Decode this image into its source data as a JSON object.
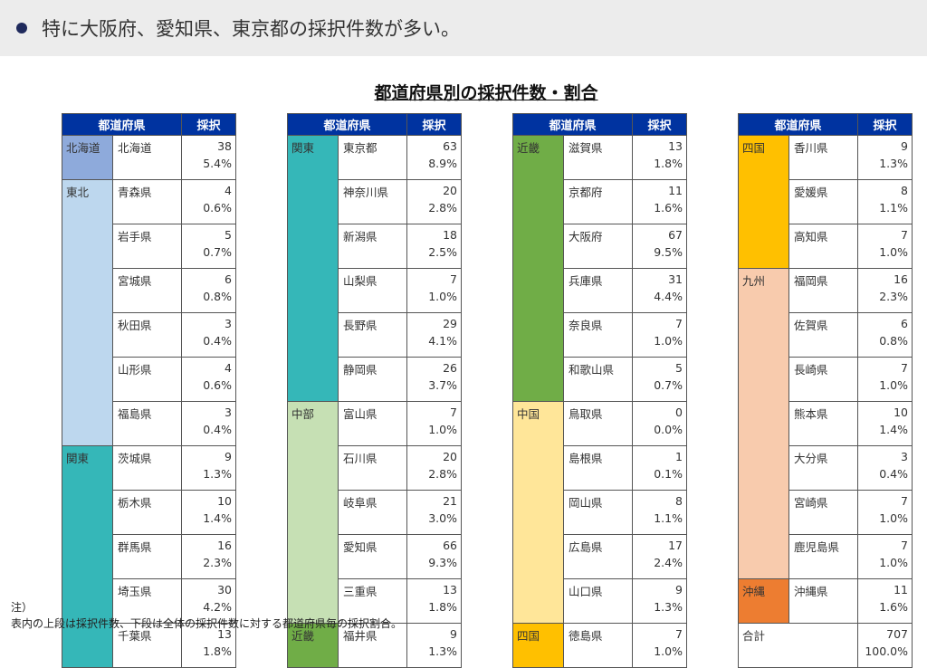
{
  "banner": {
    "text": "特に大阪府、愛知県、東京都の採択件数が多い。"
  },
  "title": "都道府県別の採択件数・割合",
  "headers": {
    "pref": "都道府県",
    "count": "採択"
  },
  "tables": [
    [
      {
        "region": "北海道",
        "color": "#8eaadb",
        "prefs": [
          [
            "北海道",
            "38",
            "5.4%"
          ]
        ]
      },
      {
        "region": "東北",
        "color": "#bdd7ee",
        "prefs": [
          [
            "青森県",
            "4",
            "0.6%"
          ],
          [
            "岩手県",
            "5",
            "0.7%"
          ],
          [
            "宮城県",
            "6",
            "0.8%"
          ],
          [
            "秋田県",
            "3",
            "0.4%"
          ],
          [
            "山形県",
            "4",
            "0.6%"
          ],
          [
            "福島県",
            "3",
            "0.4%"
          ]
        ]
      },
      {
        "region": "関東",
        "color": "#35b7b8",
        "prefs": [
          [
            "茨城県",
            "9",
            "1.3%"
          ],
          [
            "栃木県",
            "10",
            "1.4%"
          ],
          [
            "群馬県",
            "16",
            "2.3%"
          ],
          [
            "埼玉県",
            "30",
            "4.2%"
          ],
          [
            "千葉県",
            "13",
            "1.8%"
          ]
        ]
      }
    ],
    [
      {
        "region": "関東",
        "color": "#35b7b8",
        "prefs": [
          [
            "東京都",
            "63",
            "8.9%"
          ],
          [
            "神奈川県",
            "20",
            "2.8%"
          ],
          [
            "新潟県",
            "18",
            "2.5%"
          ],
          [
            "山梨県",
            "7",
            "1.0%"
          ],
          [
            "長野県",
            "29",
            "4.1%"
          ],
          [
            "静岡県",
            "26",
            "3.7%"
          ]
        ]
      },
      {
        "region": "中部",
        "color": "#c6e0b4",
        "prefs": [
          [
            "富山県",
            "7",
            "1.0%"
          ],
          [
            "石川県",
            "20",
            "2.8%"
          ],
          [
            "岐阜県",
            "21",
            "3.0%"
          ],
          [
            "愛知県",
            "66",
            "9.3%"
          ],
          [
            "三重県",
            "13",
            "1.8%"
          ]
        ]
      },
      {
        "region": "近畿",
        "color": "#70ad47",
        "prefs": [
          [
            "福井県",
            "9",
            "1.3%"
          ]
        ]
      }
    ],
    [
      {
        "region": "近畿",
        "color": "#70ad47",
        "prefs": [
          [
            "滋賀県",
            "13",
            "1.8%"
          ],
          [
            "京都府",
            "11",
            "1.6%"
          ],
          [
            "大阪府",
            "67",
            "9.5%"
          ],
          [
            "兵庫県",
            "31",
            "4.4%"
          ],
          [
            "奈良県",
            "7",
            "1.0%"
          ],
          [
            "和歌山県",
            "5",
            "0.7%"
          ]
        ]
      },
      {
        "region": "中国",
        "color": "#ffe699",
        "prefs": [
          [
            "鳥取県",
            "0",
            "0.0%"
          ],
          [
            "島根県",
            "1",
            "0.1%"
          ],
          [
            "岡山県",
            "8",
            "1.1%"
          ],
          [
            "広島県",
            "17",
            "2.4%"
          ],
          [
            "山口県",
            "9",
            "1.3%"
          ]
        ]
      },
      {
        "region": "四国",
        "color": "#ffc000",
        "prefs": [
          [
            "徳島県",
            "7",
            "1.0%"
          ]
        ]
      }
    ],
    [
      {
        "region": "四国",
        "color": "#ffc000",
        "prefs": [
          [
            "香川県",
            "9",
            "1.3%"
          ],
          [
            "愛媛県",
            "8",
            "1.1%"
          ],
          [
            "高知県",
            "7",
            "1.0%"
          ]
        ]
      },
      {
        "region": "九州",
        "color": "#f8cbad",
        "prefs": [
          [
            "福岡県",
            "16",
            "2.3%"
          ],
          [
            "佐賀県",
            "6",
            "0.8%"
          ],
          [
            "長崎県",
            "7",
            "1.0%"
          ],
          [
            "熊本県",
            "10",
            "1.4%"
          ],
          [
            "大分県",
            "3",
            "0.4%"
          ],
          [
            "宮崎県",
            "7",
            "1.0%"
          ],
          [
            "鹿児島県",
            "7",
            "1.0%"
          ]
        ]
      },
      {
        "region": "沖縄",
        "color": "#ed7d31",
        "prefs": [
          [
            "沖縄県",
            "11",
            "1.6%"
          ]
        ]
      }
    ]
  ],
  "total": {
    "label": "合計",
    "count": "707",
    "pct": "100.0%"
  },
  "note": {
    "line1": "注）",
    "line2": "表内の上段は採択件数、下段は全体の採択件数に対する都道府県毎の採択割合。"
  }
}
